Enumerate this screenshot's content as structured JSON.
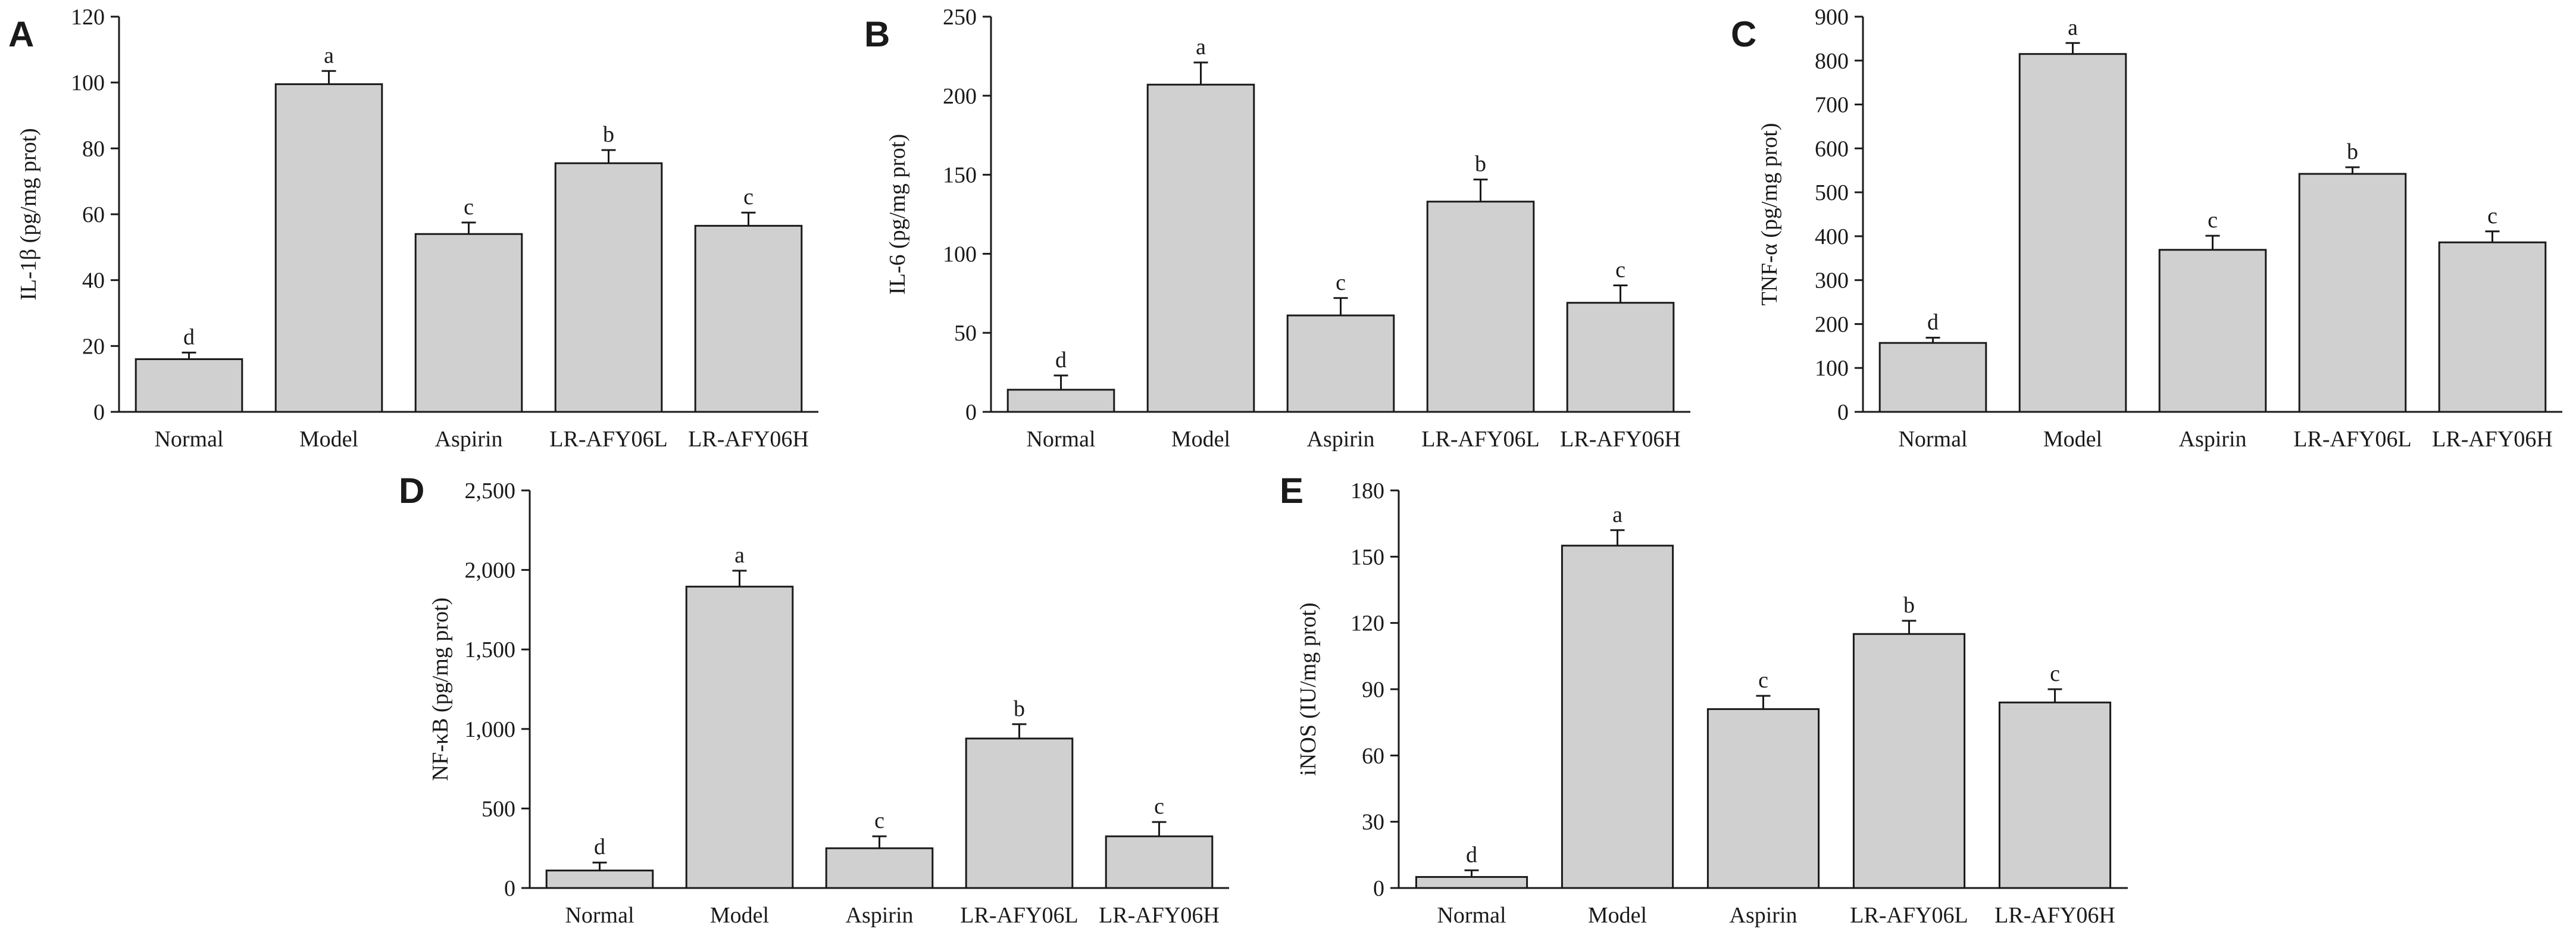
{
  "colors": {
    "bar_fill": "#d0d0d0",
    "stroke": "#1a1a1a",
    "background": "#ffffff"
  },
  "chart_data": [
    {
      "panel": "A",
      "type": "bar",
      "categories": [
        "Normal",
        "Model",
        "Aspirin",
        "LR-AFY06L",
        "LR-AFY06H"
      ],
      "values": [
        16,
        99.5,
        54,
        75.5,
        56.5
      ],
      "errors": [
        2,
        4,
        3.5,
        4,
        4
      ],
      "letters": [
        "d",
        "a",
        "c",
        "b",
        "c"
      ],
      "ylabel": "IL-1β (pg/mg prot)",
      "ylim": [
        0,
        120
      ],
      "yticks": [
        0,
        20,
        40,
        60,
        80,
        100,
        120
      ],
      "ytick_labels": [
        "0",
        "20",
        "40",
        "60",
        "80",
        "100",
        "120"
      ],
      "grid": false
    },
    {
      "panel": "B",
      "type": "bar",
      "categories": [
        "Normal",
        "Model",
        "Aspirin",
        "LR-AFY06L",
        "LR-AFY06H"
      ],
      "values": [
        14,
        207,
        61,
        133,
        69
      ],
      "errors": [
        9,
        14,
        11,
        14,
        11
      ],
      "letters": [
        "d",
        "a",
        "c",
        "b",
        "c"
      ],
      "ylabel": "IL-6 (pg/mg prot)",
      "ylim": [
        0,
        250
      ],
      "yticks": [
        0,
        50,
        100,
        150,
        200,
        250
      ],
      "ytick_labels": [
        "0",
        "50",
        "100",
        "150",
        "200",
        "250"
      ],
      "grid": false
    },
    {
      "panel": "C",
      "type": "bar",
      "categories": [
        "Normal",
        "Model",
        "Aspirin",
        "LR-AFY06L",
        "LR-AFY06H"
      ],
      "values": [
        157,
        815,
        369,
        542,
        386
      ],
      "errors": [
        12,
        25,
        32,
        15,
        25
      ],
      "letters": [
        "d",
        "a",
        "c",
        "b",
        "c"
      ],
      "ylabel": "TNF-α (pg/mg prot)",
      "ylim": [
        0,
        900
      ],
      "yticks": [
        0,
        100,
        200,
        300,
        400,
        500,
        600,
        700,
        800,
        900
      ],
      "ytick_labels": [
        "0",
        "100",
        "200",
        "300",
        "400",
        "500",
        "600",
        "700",
        "800",
        "900"
      ],
      "grid": false
    },
    {
      "panel": "D",
      "type": "bar",
      "categories": [
        "Normal",
        "Model",
        "Aspirin",
        "LR-AFY06L",
        "LR-AFY06H"
      ],
      "values": [
        110,
        1895,
        250,
        940,
        325
      ],
      "errors": [
        50,
        100,
        75,
        90,
        90
      ],
      "letters": [
        "d",
        "a",
        "c",
        "b",
        "c"
      ],
      "ylabel": "NF-κB (pg/mg prot)",
      "ylim": [
        0,
        2500
      ],
      "yticks": [
        0,
        500,
        1000,
        1500,
        2000,
        2500
      ],
      "ytick_labels": [
        "0",
        "500",
        "1,000",
        "1,500",
        "2,000",
        "2,500"
      ],
      "grid": false
    },
    {
      "panel": "E",
      "type": "bar",
      "categories": [
        "Normal",
        "Model",
        "Aspirin",
        "LR-AFY06L",
        "LR-AFY06H"
      ],
      "values": [
        5,
        155,
        81,
        115,
        84
      ],
      "errors": [
        3,
        7,
        6,
        6,
        6
      ],
      "letters": [
        "d",
        "a",
        "c",
        "b",
        "c"
      ],
      "ylabel": "iNOS (IU/mg prot)",
      "ylim": [
        0,
        180
      ],
      "yticks": [
        0,
        30,
        60,
        90,
        120,
        150,
        180
      ],
      "ytick_labels": [
        "0",
        "30",
        "60",
        "90",
        "120",
        "150",
        "180"
      ],
      "grid": false
    }
  ]
}
